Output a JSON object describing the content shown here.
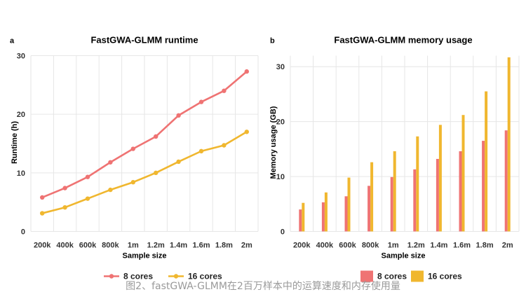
{
  "caption": "图2、fastGWA-GLMM在2百万样本中的运算速度和内存使用量",
  "colors": {
    "series_8": "#ef7373",
    "series_16": "#f0b72f",
    "grid": "#e6e6e6"
  },
  "chart_data": [
    {
      "panel": "a",
      "type": "line",
      "title": "FastGWA-GLMM runtime",
      "xlabel": "Sample size",
      "ylabel": "Runtime (h)",
      "categories": [
        "200k",
        "400k",
        "600k",
        "800k",
        "1m",
        "1.2m",
        "1.4m",
        "1.6m",
        "1.8m",
        "2m"
      ],
      "ylim": [
        0,
        30
      ],
      "yticks": [
        0,
        10,
        20,
        30
      ],
      "grid": true,
      "legend": "bottom",
      "series": [
        {
          "name": "8 cores",
          "color": "#ef7373",
          "values": [
            5.8,
            7.4,
            9.3,
            11.8,
            14.1,
            16.2,
            19.8,
            22.1,
            24.0,
            27.3
          ]
        },
        {
          "name": "16 cores",
          "color": "#f0b72f",
          "values": [
            3.1,
            4.1,
            5.6,
            7.1,
            8.4,
            10.0,
            11.9,
            13.7,
            14.7,
            17.0
          ]
        }
      ]
    },
    {
      "panel": "b",
      "type": "bar",
      "title": "FastGWA-GLMM memory usage",
      "xlabel": "Sample size",
      "ylabel": "Memory usage (GB)",
      "categories": [
        "200k",
        "400k",
        "600k",
        "800k",
        "1m",
        "1.2m",
        "1.4m",
        "1.6m",
        "1.8m",
        "2m"
      ],
      "ylim": [
        0,
        32
      ],
      "yticks": [
        0,
        10,
        20,
        30
      ],
      "grid": true,
      "legend": "bottom",
      "series": [
        {
          "name": "8 cores",
          "color": "#ef7373",
          "values": [
            4.0,
            5.3,
            6.4,
            8.3,
            9.9,
            11.3,
            13.2,
            14.6,
            16.5,
            18.4
          ]
        },
        {
          "name": "16 cores",
          "color": "#f0b72f",
          "values": [
            5.2,
            7.1,
            9.8,
            12.6,
            14.6,
            17.3,
            19.4,
            21.2,
            25.5,
            31.7
          ]
        }
      ]
    }
  ]
}
